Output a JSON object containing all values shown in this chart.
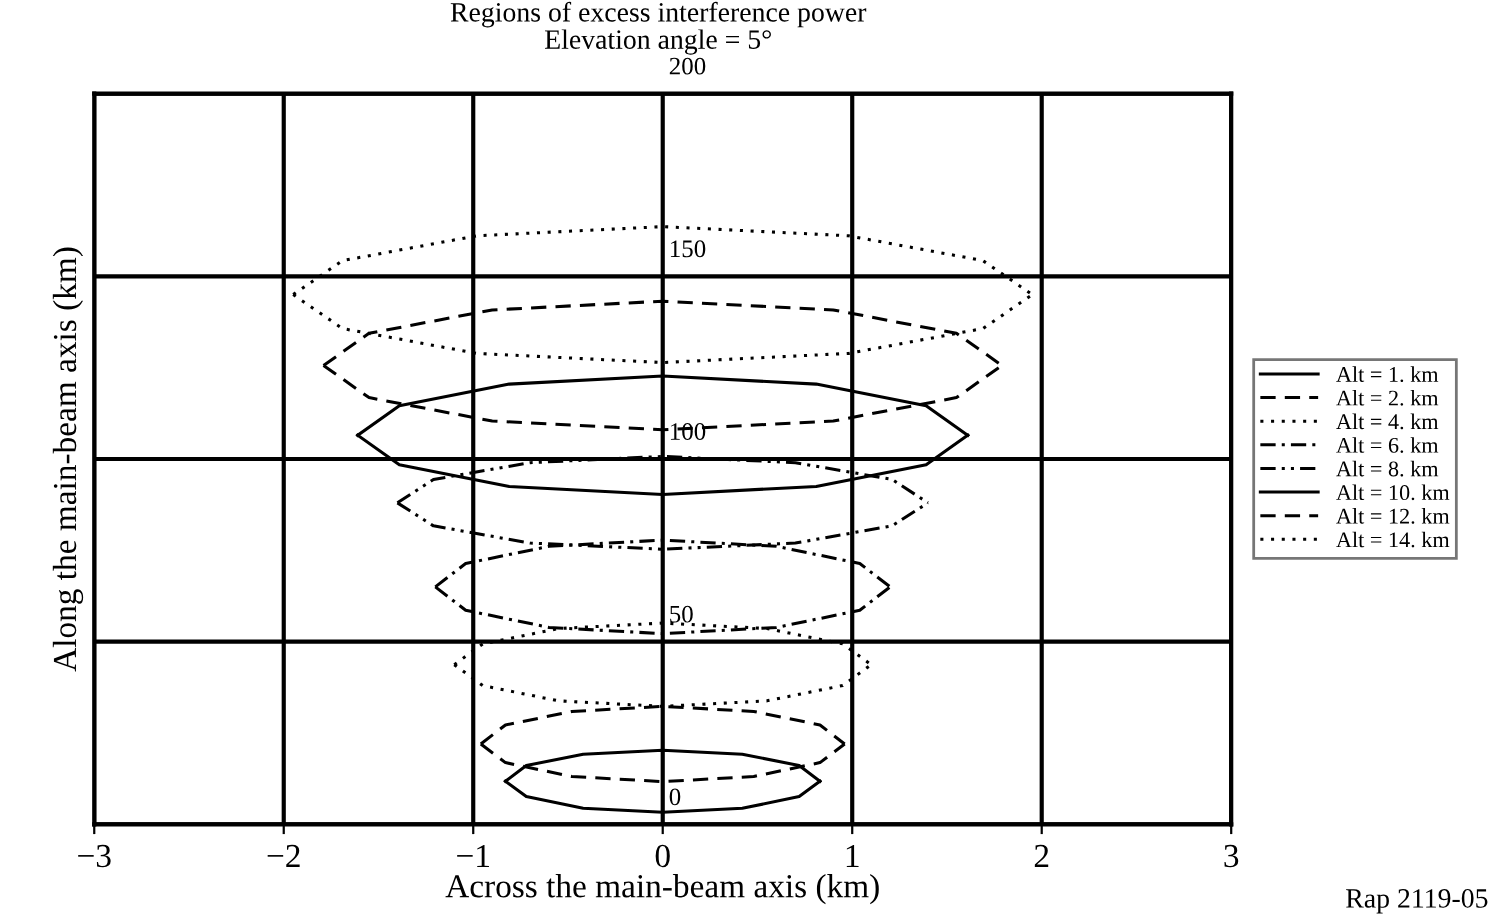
{
  "chart_data": {
    "type": "line",
    "title": "Regions of excess interference power",
    "subtitle": "Elevation angle = 5°",
    "xlabel": "Across the main-beam axis (km)",
    "ylabel": "Along the main-beam axis (km)",
    "xlim": [
      -3,
      3
    ],
    "xticks": [
      {
        "value": -3,
        "label": "−3"
      },
      {
        "value": -2,
        "label": "−2"
      },
      {
        "value": -1,
        "label": "−1"
      },
      0,
      1,
      2,
      3
    ],
    "ylim": [
      0,
      200
    ],
    "yticks": [
      0,
      50,
      100,
      150,
      200
    ],
    "grid": true,
    "legend": "right",
    "marker": "none",
    "annotations": [
      "Rap 2119-05"
    ],
    "series": [
      {
        "name": "Alt = 1. km",
        "color": "#000000",
        "line_style": "solid",
        "x": [
          -0.83,
          -0.72,
          -0.42,
          0,
          0.42,
          0.72,
          0.83
        ],
        "values": [
          11.8,
          16.1,
          19.2,
          20.3,
          19.2,
          16.1,
          11.8
        ]
      },
      {
        "color": "#000000",
        "line_style": "solid",
        "x": [
          -0.83,
          -0.72,
          -0.42,
          0,
          0.42,
          0.72,
          0.83
        ],
        "values": [
          11.8,
          7.6,
          4.4,
          3.3,
          4.4,
          7.6,
          11.8
        ]
      },
      {
        "name": "Alt = 2. km",
        "color": "#000000",
        "line_style": "dashed",
        "x": [
          -0.96,
          -0.83,
          -0.48,
          0,
          0.48,
          0.83,
          0.96
        ],
        "values": [
          22,
          27.2,
          30.9,
          32.3,
          30.9,
          27.2,
          22
        ]
      },
      {
        "color": "#000000",
        "line_style": "dashed",
        "x": [
          -0.96,
          -0.83,
          -0.48,
          0,
          0.48,
          0.83,
          0.96
        ],
        "values": [
          22,
          16.9,
          13.1,
          11.7,
          13.1,
          16.9,
          22
        ]
      },
      {
        "name": "Alt = 4. km",
        "color": "#000000",
        "line_style": "dotted",
        "x": [
          -1.1,
          -0.95,
          -0.55,
          0,
          0.55,
          0.95,
          1.1
        ],
        "values": [
          43.7,
          49.4,
          53.6,
          55.1,
          53.6,
          49.4,
          43.7
        ]
      },
      {
        "color": "#000000",
        "line_style": "dotted",
        "x": [
          -1.1,
          -0.95,
          -0.55,
          0,
          0.55,
          0.95,
          1.1
        ],
        "values": [
          43.7,
          38.0,
          33.8,
          32.3,
          33.8,
          38.0,
          43.7
        ]
      },
      {
        "name": "Alt = 6. km",
        "color": "#000000",
        "line_style": "dashdot",
        "x": [
          -1.2,
          -1.04,
          -0.6,
          0,
          0.6,
          1.04,
          1.2
        ],
        "values": [
          65,
          71.4,
          76.1,
          77.8,
          76.1,
          71.4,
          65
        ]
      },
      {
        "color": "#000000",
        "line_style": "dashdot",
        "x": [
          -1.2,
          -1.04,
          -0.6,
          0,
          0.6,
          1.04,
          1.2
        ],
        "values": [
          65,
          58.6,
          53.9,
          52.2,
          53.9,
          58.6,
          65
        ]
      },
      {
        "name": "Alt = 8. km",
        "color": "#000000",
        "line_style": "dashdotdot",
        "x": [
          -1.4,
          -1.21,
          -0.7,
          0,
          0.7,
          1.21,
          1.4
        ],
        "values": [
          88,
          94.4,
          99,
          100.7,
          99,
          94.4,
          88
        ]
      },
      {
        "color": "#000000",
        "line_style": "dashdotdot",
        "x": [
          -1.4,
          -1.21,
          -0.7,
          0,
          0.7,
          1.21,
          1.4
        ],
        "values": [
          88,
          81.7,
          77,
          75.3,
          77,
          81.7,
          88
        ]
      },
      {
        "name": "Alt = 10. km",
        "color": "#000000",
        "line_style": "solid",
        "x": [
          -1.61,
          -1.39,
          -0.81,
          0,
          0.81,
          1.39,
          1.61
        ],
        "values": [
          106.5,
          114.6,
          120.5,
          122.7,
          120.5,
          114.6,
          106.5
        ]
      },
      {
        "color": "#000000",
        "line_style": "solid",
        "x": [
          -1.61,
          -1.39,
          -0.81,
          0,
          0.81,
          1.39,
          1.61
        ],
        "values": [
          106.5,
          98.4,
          92.5,
          90.3,
          92.5,
          98.4,
          106.5
        ]
      },
      {
        "name": "Alt = 12. km",
        "color": "#000000",
        "line_style": "dashed",
        "x": [
          -1.79,
          -1.55,
          -0.9,
          0,
          0.9,
          1.55,
          1.79
        ],
        "values": [
          125.6,
          134.4,
          140.8,
          143.2,
          140.8,
          134.4,
          125.6
        ]
      },
      {
        "color": "#000000",
        "line_style": "dashed",
        "x": [
          -1.79,
          -1.55,
          -0.9,
          0,
          0.9,
          1.55,
          1.79
        ],
        "values": [
          125.6,
          116.8,
          110.4,
          108,
          110.4,
          116.8,
          125.6
        ]
      },
      {
        "name": "Alt = 14. km",
        "color": "#000000",
        "line_style": "dotted",
        "x": [
          -1.95,
          -1.69,
          -0.98,
          0,
          0.98,
          1.69,
          1.95
        ],
        "values": [
          145,
          154.3,
          161.1,
          163.6,
          161.1,
          154.3,
          145
        ]
      },
      {
        "color": "#000000",
        "line_style": "dotted",
        "x": [
          -1.95,
          -1.69,
          -0.98,
          0,
          0.98,
          1.69,
          1.95
        ],
        "values": [
          145,
          135.7,
          128.9,
          126.4,
          128.9,
          135.7,
          145
        ]
      }
    ]
  }
}
